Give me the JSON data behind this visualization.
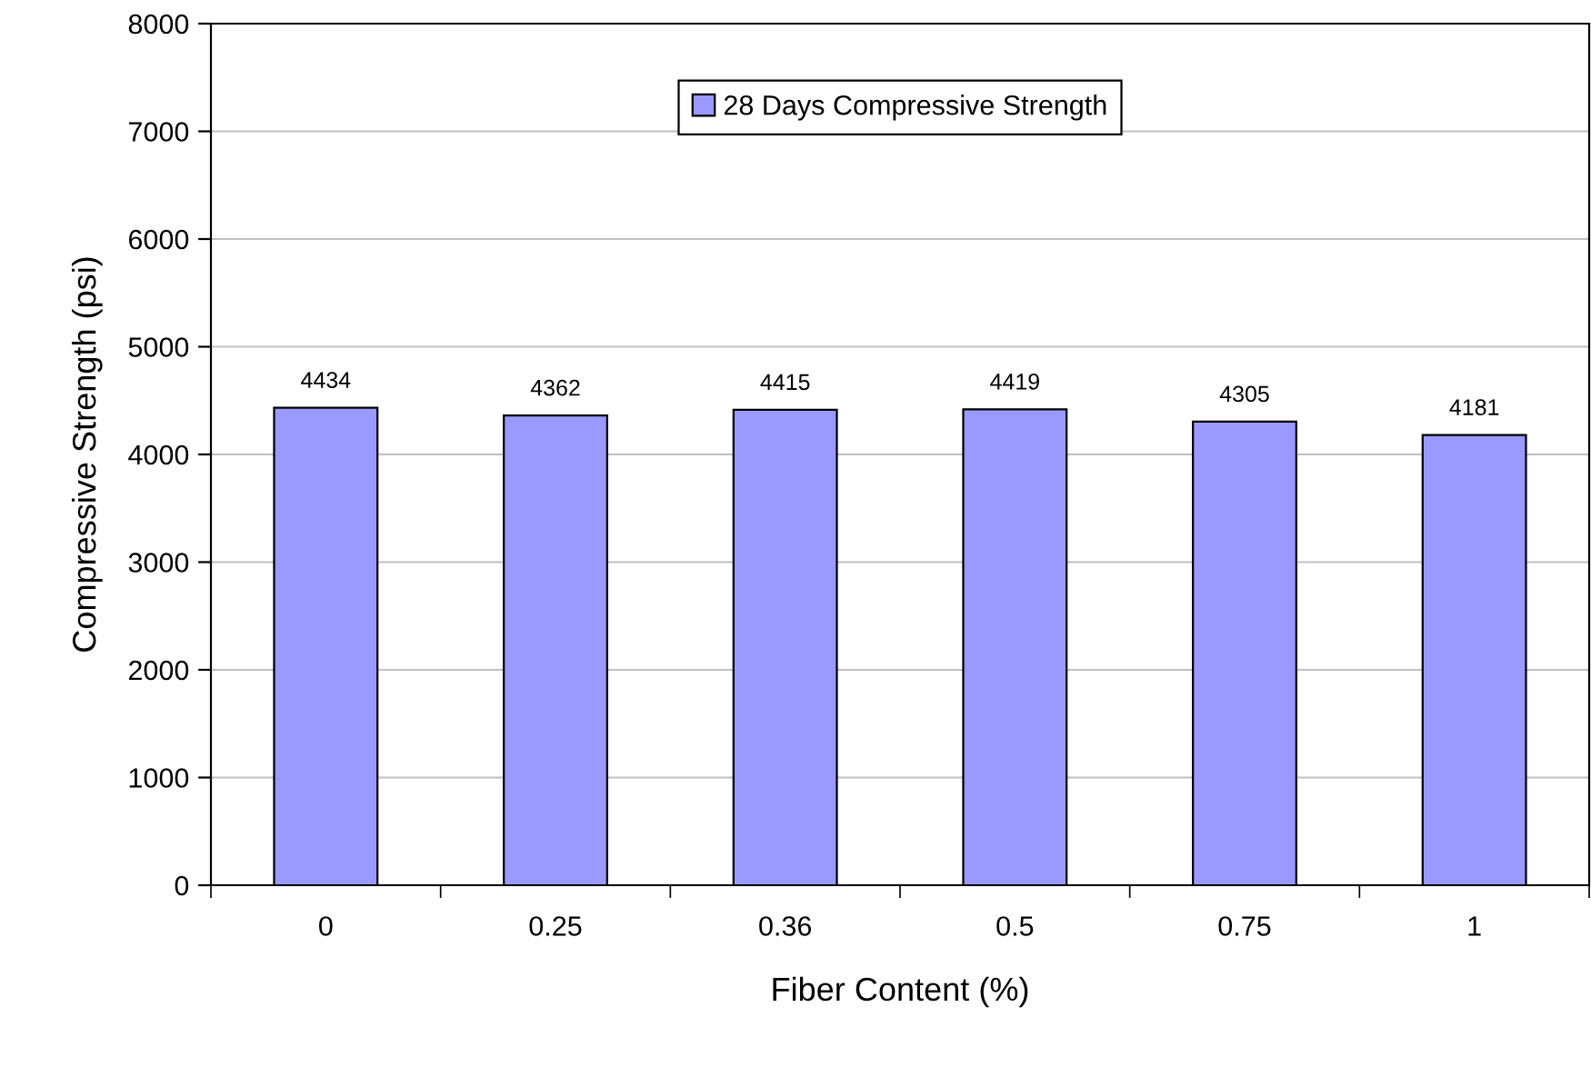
{
  "chart_data": {
    "type": "bar",
    "xlabel": "Fiber Content (%)",
    "ylabel": "Compressive Strength (psi)",
    "categories": [
      "0",
      "0.25",
      "0.36",
      "0.5",
      "0.75",
      "1"
    ],
    "series": [
      {
        "name": "28 Days Compressive Strength",
        "color": "#9999ff",
        "values": [
          4434,
          4362,
          4415,
          4419,
          4305,
          4181
        ]
      }
    ],
    "ylim": [
      0,
      8000
    ],
    "yticks": [
      0,
      1000,
      2000,
      3000,
      4000,
      5000,
      6000,
      7000,
      8000
    ],
    "grid": "y",
    "legend": "top",
    "data_labels": true
  }
}
